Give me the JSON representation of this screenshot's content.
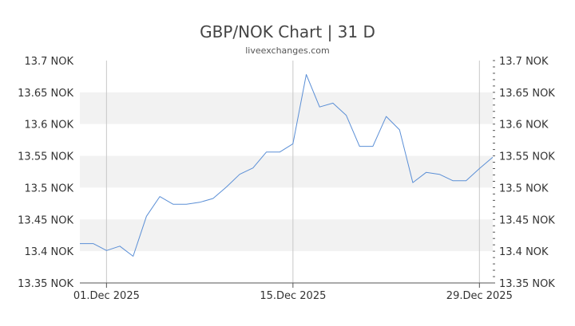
{
  "chart_data": {
    "type": "line",
    "title": "GBP/NOK Chart | 31 D",
    "subtitle": "liveexchanges.com",
    "ylim": [
      13.35,
      13.7
    ],
    "y_ticks": [
      "13.7 NOK",
      "13.65 NOK",
      "13.6 NOK",
      "13.55 NOK",
      "13.5 NOK",
      "13.45 NOK",
      "13.4 NOK",
      "13.35 NOK"
    ],
    "y_tick_values": [
      13.7,
      13.65,
      13.6,
      13.55,
      13.5,
      13.45,
      13.4,
      13.35
    ],
    "x_tick_labels": [
      "01.Dec 2025",
      "15.Dec 2025",
      "29.Dec 2025"
    ],
    "x_tick_days": [
      2,
      16,
      30
    ],
    "x_range_days": [
      0,
      31
    ],
    "grid_bands": "alternating",
    "line_color": "#5b8fd6",
    "series": [
      {
        "x": [
          0,
          1,
          2,
          3,
          4,
          5,
          6,
          7,
          8,
          9,
          10,
          11,
          12,
          13,
          14,
          15,
          16,
          17,
          18,
          19,
          20,
          21,
          22,
          23,
          24,
          25,
          26,
          27,
          28,
          29,
          30,
          31
        ],
        "values": [
          13.412,
          13.412,
          13.401,
          13.408,
          13.392,
          13.455,
          13.486,
          13.474,
          13.474,
          13.477,
          13.483,
          13.501,
          13.521,
          13.531,
          13.556,
          13.556,
          13.569,
          13.678,
          13.627,
          13.633,
          13.614,
          13.565,
          13.565,
          13.612,
          13.591,
          13.508,
          13.524,
          13.521,
          13.511,
          13.511,
          13.53,
          13.548
        ]
      }
    ]
  }
}
